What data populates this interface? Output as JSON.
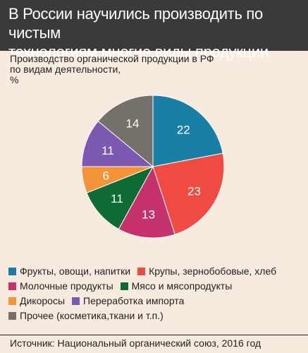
{
  "header": {
    "title_line1": "В России научились производить по чистым",
    "title_line2": "технологиям многие виды продукции"
  },
  "subtitle": {
    "line1": "Производство органической продукции в РФ",
    "line2": "по видам деятельности,",
    "line3": "%"
  },
  "chart_data": {
    "type": "pie",
    "title": "Производство органической продукции в РФ по видам деятельности, %",
    "categories": [
      "Фрукты, овощи, напитки",
      "Крупы, зернобобовые, хлеб",
      "Молочные продукты",
      "Мясо и мясопродукты",
      "Дикоросы",
      "Переработка импорта",
      "Прочее (косметика,ткани и т.п.)"
    ],
    "values": [
      22,
      23,
      13,
      11,
      6,
      11,
      14
    ],
    "colors": [
      "#1a7fa6",
      "#ef4b43",
      "#c6336c",
      "#0e6b34",
      "#f49439",
      "#7b58b2",
      "#76706b"
    ],
    "labels": [
      "22",
      "23",
      "13",
      "11",
      "6",
      "11",
      "14"
    ],
    "start_angle": "12 o'clock",
    "direction": "clockwise"
  },
  "legend": {
    "position": "bottom",
    "rows": [
      [
        0,
        1
      ],
      [
        2,
        3
      ],
      [
        4,
        5
      ],
      [
        6
      ]
    ]
  },
  "source": "Источник: Национальный органический союз, 2016 год"
}
